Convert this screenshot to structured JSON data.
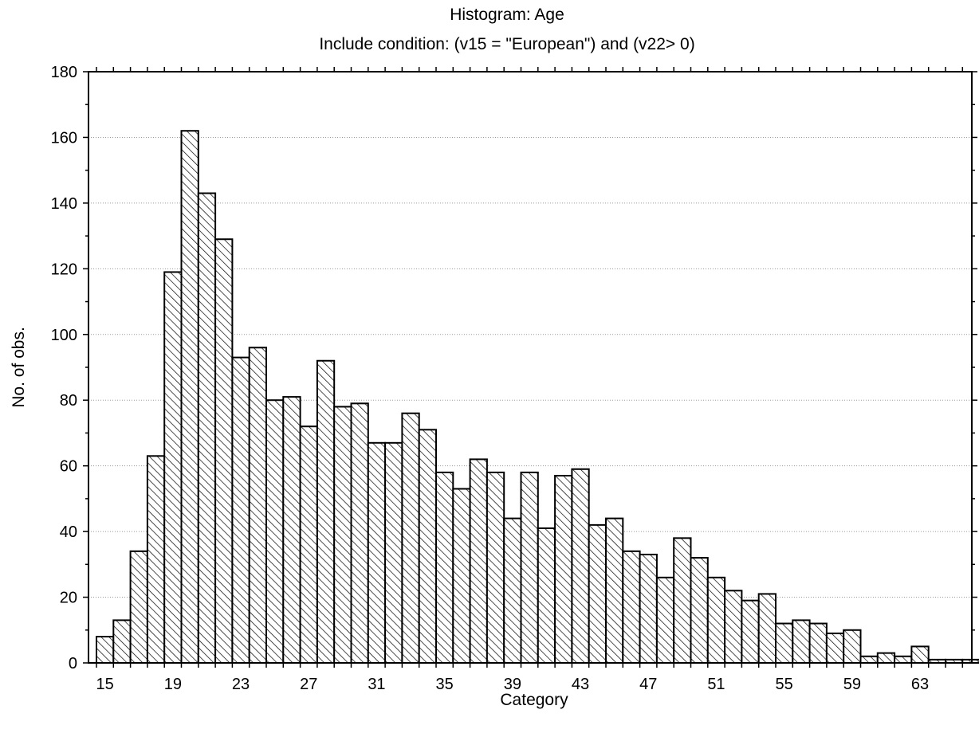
{
  "chart_data": {
    "type": "bar",
    "title": "Histogram: Age",
    "subtitle": "Include condition: (v15 = \"European\")  and (v22> 0)",
    "xlabel": "Category",
    "ylabel": "No. of obs.",
    "ylim": [
      0,
      180
    ],
    "yticks": [
      "0",
      "20",
      "40",
      "60",
      "80",
      "100",
      "120",
      "140",
      "160",
      "180"
    ],
    "xtick_labels": [
      "15",
      "19",
      "23",
      "27",
      "31",
      "35",
      "39",
      "43",
      "47",
      "51",
      "55",
      "59",
      "63"
    ],
    "grid": true,
    "categories": [
      "15",
      "16",
      "17",
      "18",
      "19",
      "20",
      "21",
      "22",
      "23",
      "24",
      "25",
      "26",
      "27",
      "28",
      "29",
      "30",
      "31",
      "32",
      "33",
      "34",
      "35",
      "36",
      "37",
      "38",
      "39",
      "40",
      "41",
      "42",
      "43",
      "44",
      "45",
      "46",
      "47",
      "48",
      "49",
      "50",
      "51",
      "52",
      "53",
      "54",
      "55",
      "56",
      "57",
      "58",
      "59",
      "60",
      "61",
      "62",
      "63",
      "64",
      "65",
      "66"
    ],
    "values": [
      8,
      13,
      34,
      63,
      119,
      162,
      143,
      129,
      93,
      96,
      80,
      81,
      72,
      92,
      78,
      79,
      67,
      67,
      76,
      71,
      58,
      53,
      62,
      58,
      44,
      58,
      41,
      57,
      59,
      42,
      44,
      34,
      33,
      26,
      38,
      32,
      26,
      22,
      19,
      21,
      12,
      13,
      12,
      9,
      10,
      2,
      3,
      2,
      5,
      1,
      1,
      1
    ],
    "bar_fill_pattern": "diagonal-hatch",
    "bar_color": "#000000"
  }
}
